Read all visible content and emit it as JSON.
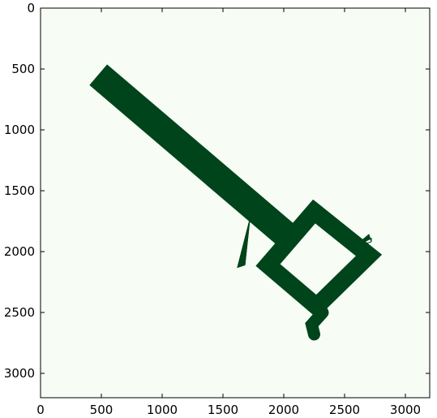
{
  "colors": {
    "background": "#f7fcf5",
    "occupied": "#00441b",
    "frame": "#000000"
  },
  "chart_data": {
    "type": "heatmap",
    "title": "",
    "xlabel": "",
    "ylabel": "",
    "xlim": [
      0,
      3200
    ],
    "ylim": [
      3200,
      0
    ],
    "y_axis_inverted": true,
    "grid": false,
    "legend": "none",
    "x_ticks": [
      0,
      500,
      1000,
      1500,
      2000,
      2500,
      3000
    ],
    "x_tick_labels": [
      "0",
      "500",
      "1000",
      "1500",
      "2000",
      "2500",
      "3000"
    ],
    "y_ticks": [
      0,
      500,
      1000,
      1500,
      2000,
      2500,
      3000
    ],
    "y_tick_labels": [
      "0",
      "500",
      "1000",
      "1500",
      "2000",
      "2500",
      "3000"
    ],
    "occupied_regions": [
      {
        "name": "corridor",
        "centerline": [
          [
            560,
            620
          ],
          [
            1980,
            1830
          ]
        ],
        "width": 70
      },
      {
        "name": "square-loop",
        "vertices": [
          [
            2250,
            1670
          ],
          [
            2700,
            2030
          ],
          [
            2270,
            2450
          ],
          [
            1870,
            2110
          ]
        ],
        "width": 55
      },
      {
        "name": "ray-fan-lower",
        "apex": [
          1720,
          1740
        ],
        "ends": [
          [
            1620,
            2130
          ],
          [
            1650,
            2120
          ],
          [
            1680,
            2110
          ]
        ]
      },
      {
        "name": "ray-fan-right",
        "apex": [
          2580,
          1960
        ],
        "ends": [
          [
            2720,
            1890
          ],
          [
            2720,
            1920
          ],
          [
            2700,
            1860
          ]
        ]
      },
      {
        "name": "tail-bottom",
        "polyline": [
          [
            2320,
            2500
          ],
          [
            2230,
            2600
          ],
          [
            2250,
            2680
          ]
        ],
        "width": 40
      }
    ]
  }
}
